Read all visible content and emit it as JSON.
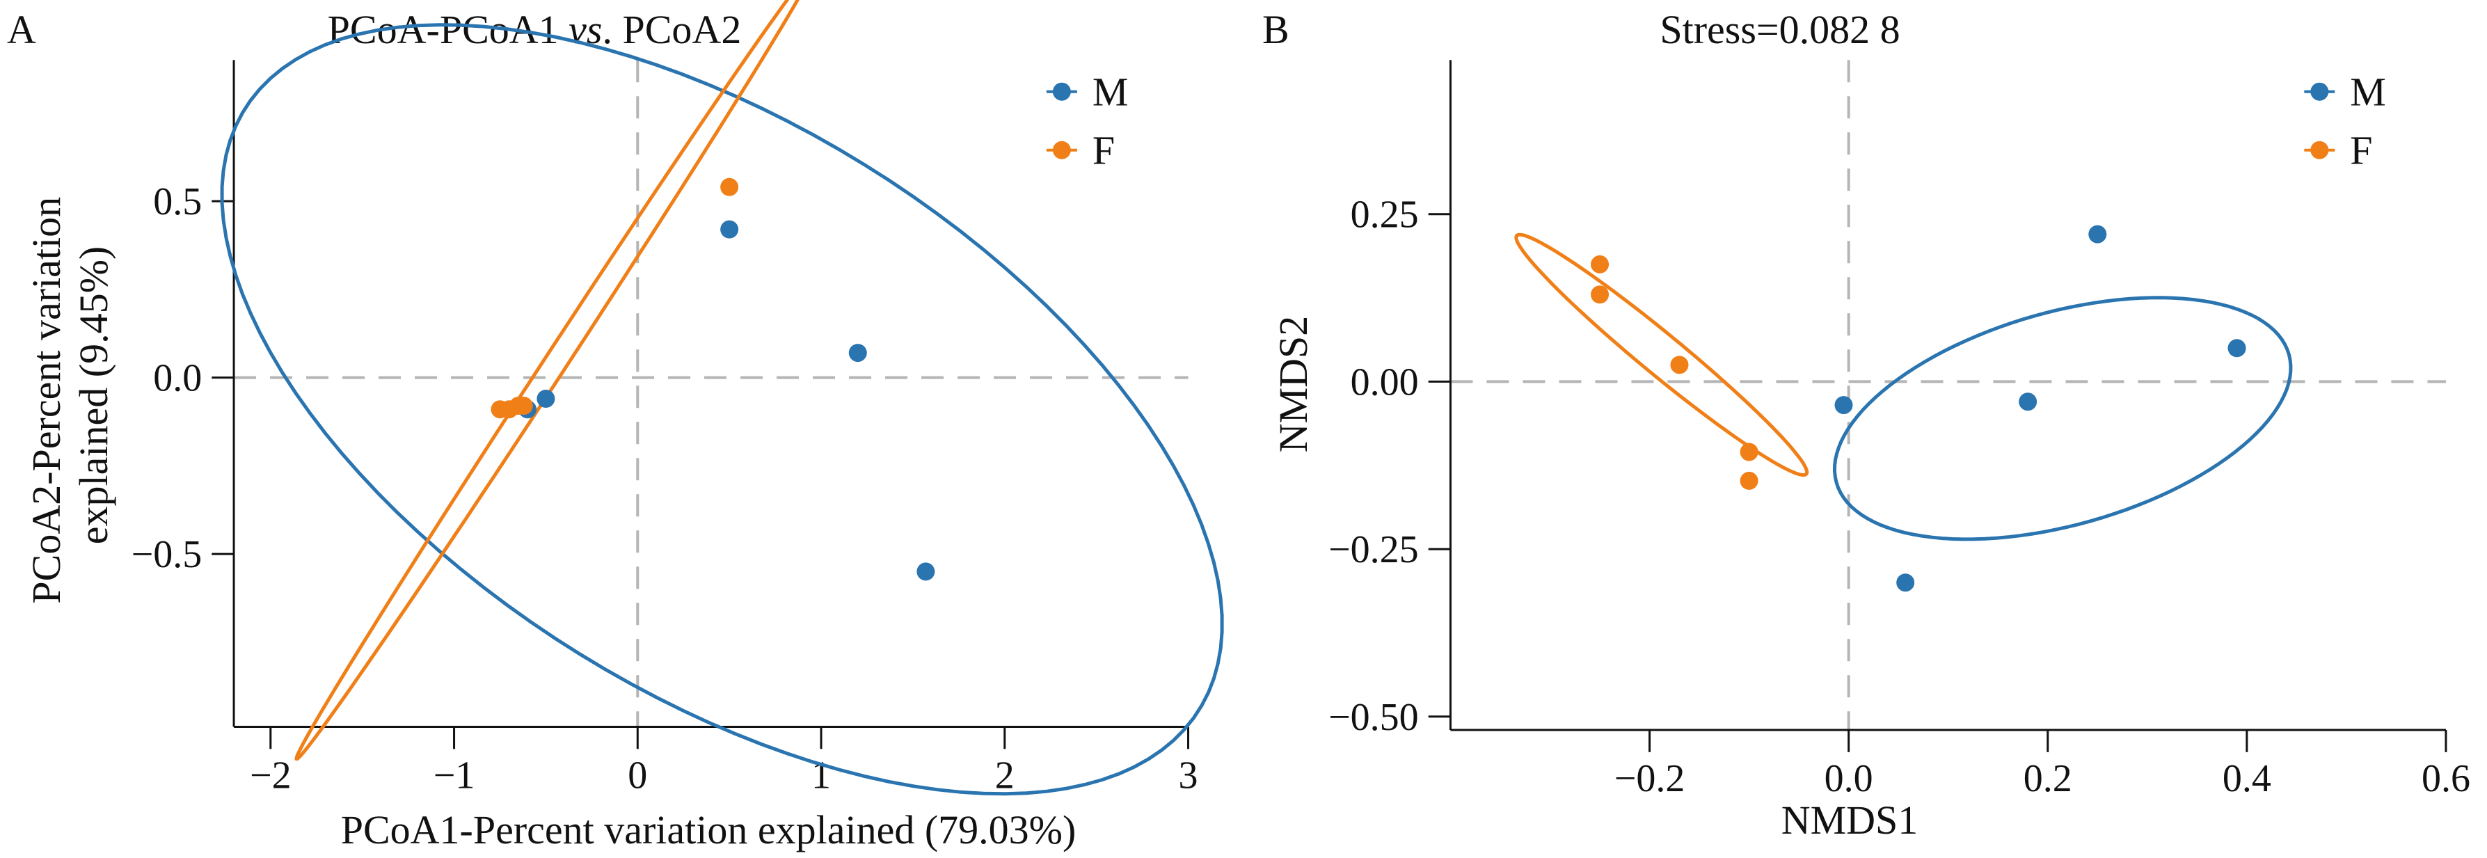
{
  "colors": {
    "M": "#2a74b0",
    "F": "#f07f17",
    "axis": "#111111",
    "refline": "#b5b5b5"
  },
  "chart_data": [
    {
      "type": "scatter",
      "panel_label": "A",
      "title_parts": [
        "PCoA-PCoA1 ",
        "vs",
        ". PCoA2"
      ],
      "xlabel": "PCoA1-Percent variation explained (79.03%)",
      "ylabel_lines": [
        "PCoA2-Percent variation",
        "explained (9.45%)"
      ],
      "xlim": [
        -2.2,
        3.0
      ],
      "ylim": [
        -0.99,
        0.9
      ],
      "xticks": [
        -2,
        -1,
        0,
        1,
        2,
        3
      ],
      "xtick_labels": [
        "−2",
        "−1",
        "0",
        "1",
        "2",
        "3"
      ],
      "yticks": [
        0.5,
        0.0,
        -0.5
      ],
      "ytick_labels": [
        "0.5",
        "0.0",
        "−0.5"
      ],
      "reference_lines": {
        "x": 0,
        "y": 0
      },
      "legend": [
        "M",
        "F"
      ],
      "legend_position": "top-right",
      "series": [
        {
          "name": "M",
          "points": [
            [
              0.5,
              0.42
            ],
            [
              1.2,
              0.07
            ],
            [
              1.57,
              -0.55
            ],
            [
              -0.6,
              -0.09
            ],
            [
              -0.5,
              -0.06
            ]
          ],
          "ellipse": {
            "center": [
              0.46,
              -0.09
            ],
            "semi_axes": [
              2.8,
              0.88
            ],
            "angle_deg": -14
          }
        },
        {
          "name": "F",
          "points": [
            [
              0.5,
              0.54
            ],
            [
              -0.62,
              -0.08
            ],
            [
              -0.7,
              -0.09
            ],
            [
              -0.75,
              -0.09
            ],
            [
              -0.65,
              -0.08
            ]
          ],
          "ellipse": {
            "center": [
              -0.45,
              0.04
            ],
            "semi_axes": [
              1.8,
              0.045
            ],
            "angle_deg": 38.5
          }
        }
      ]
    },
    {
      "type": "scatter",
      "panel_label": "B",
      "title": "Stress=0.082 8",
      "xlabel": "NMDS1",
      "ylabel": "NMDS2",
      "xlim": [
        -0.4,
        0.6
      ],
      "ylim": [
        -0.52,
        0.48
      ],
      "xticks": [
        -0.2,
        0.0,
        0.2,
        0.4,
        0.6
      ],
      "xtick_labels": [
        "−0.2",
        "0.0",
        "0.2",
        "0.4",
        "0.6"
      ],
      "yticks": [
        0.25,
        0.0,
        -0.25,
        -0.5
      ],
      "ytick_labels": [
        "0.25",
        "0.00",
        "−0.25",
        "−0.50"
      ],
      "reference_lines": {
        "x": 0,
        "y": 0
      },
      "legend": [
        "M",
        "F"
      ],
      "legend_position": "top-right",
      "series": [
        {
          "name": "M",
          "points": [
            [
              0.25,
              0.22
            ],
            [
              0.39,
              0.05
            ],
            [
              -0.005,
              -0.035
            ],
            [
              0.18,
              -0.03
            ],
            [
              0.057,
              -0.3
            ]
          ],
          "ellipse": {
            "center": [
              0.215,
              -0.055
            ],
            "semi_axes": [
              0.25,
              0.15
            ],
            "angle_deg": 30
          }
        },
        {
          "name": "F",
          "points": [
            [
              -0.25,
              0.175
            ],
            [
              -0.25,
              0.13
            ],
            [
              -0.17,
              0.025
            ],
            [
              -0.1,
              -0.105
            ],
            [
              -0.1,
              -0.148
            ]
          ],
          "ellipse": {
            "center": [
              -0.188,
              0.04
            ],
            "semi_axes": [
              0.23,
              0.025
            ],
            "angle_deg": -51
          }
        }
      ]
    }
  ]
}
